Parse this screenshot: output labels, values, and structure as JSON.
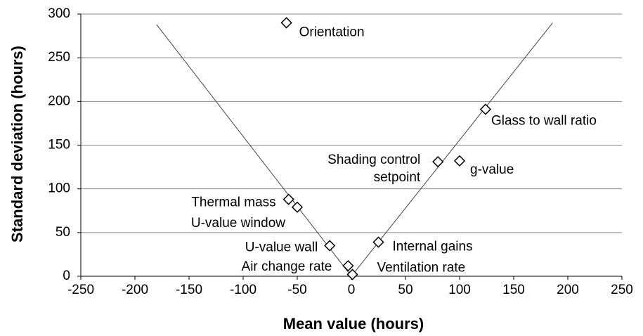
{
  "chart_data": {
    "type": "scatter",
    "xlabel": "Mean value (hours)",
    "ylabel": "Standard deviation (hours)",
    "x": [
      -60,
      124,
      80,
      100,
      -58,
      -50,
      -20,
      -3,
      1,
      25
    ],
    "y": [
      290,
      191,
      131,
      132,
      88,
      79,
      35,
      12,
      2,
      39
    ],
    "labels": [
      [
        "Orientation"
      ],
      [
        "Glass to wall ratio"
      ],
      [
        "Shading control",
        "setpoint"
      ],
      [
        "g-value"
      ],
      [
        "Thermal mass"
      ],
      [
        "U-value window"
      ],
      [
        "U-value wall"
      ],
      [
        "Air change rate"
      ],
      [
        "Ventilation rate"
      ],
      [
        "Internal gains"
      ]
    ],
    "reference_lines": [
      {
        "x": [
          -180,
          0
        ],
        "y": [
          288,
          0
        ]
      },
      {
        "x": [
          0,
          186
        ],
        "y": [
          0,
          290
        ]
      }
    ],
    "xlim": [
      -250,
      250
    ],
    "xticks": [
      -250,
      -200,
      -150,
      -100,
      -50,
      0,
      50,
      100,
      150,
      200,
      250
    ],
    "ylim": [
      0,
      300
    ],
    "yticks": [
      0,
      50,
      100,
      150,
      200,
      250,
      300
    ],
    "grid": true,
    "color": "#000000"
  }
}
